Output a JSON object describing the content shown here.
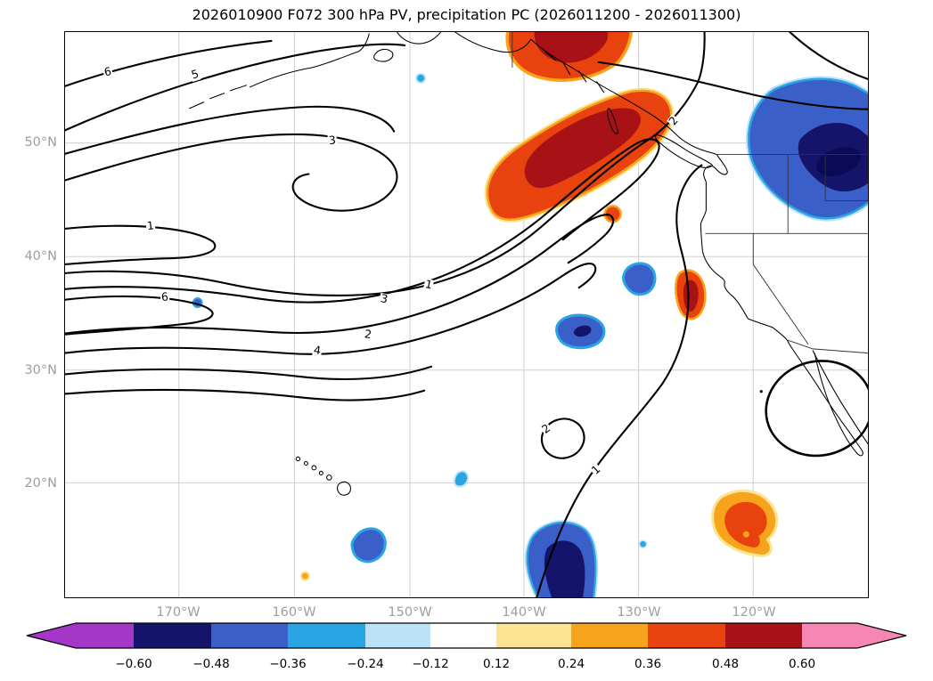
{
  "figure": {
    "title": "2026010900 F072 300 hPa PV, precipitation PC (2026011200 - 2026011300)"
  },
  "axes": {
    "x_ticks": [
      "170°W",
      "160°W",
      "150°W",
      "140°W",
      "130°W",
      "120°W"
    ],
    "y_ticks": [
      "50°N",
      "40°N",
      "30°N",
      "20°N"
    ]
  },
  "contour_labels": [
    "6",
    "5",
    "3",
    "1",
    "6",
    "4",
    "2",
    "3",
    "1",
    "2",
    "2",
    "1"
  ],
  "colorbar": {
    "tick_labels": [
      "−0.60",
      "−0.48",
      "−0.36",
      "−0.24",
      "−0.12",
      "0.12",
      "0.24",
      "0.36",
      "0.48",
      "0.60"
    ],
    "segment_colors": [
      "#14146B",
      "#3A5FC8",
      "#29A5E3",
      "#BCE2F7",
      "#FFFFFF",
      "#FBE491",
      "#F7A41C",
      "#E8430F",
      "#A81216"
    ],
    "under_color": "#A437C8",
    "over_color": "#F687B5"
  },
  "palette": {
    "neg4": "#0B0B55",
    "neg3": "#14146B",
    "neg2": "#3A5FC8",
    "neg1": "#29A5E3",
    "neg0": "#BCE2F7",
    "pos0": "#FBE491",
    "pos1": "#F7A41C",
    "pos2": "#E8430F",
    "pos3": "#A81216",
    "under": "#A437C8",
    "over": "#F687B5",
    "grid": "#cfcfcf",
    "tick": "#9e9e9e"
  },
  "chart_data": {
    "type": "contour-map",
    "title": "2026010900 F072 300 hPa PV, precipitation PC (2026011200 - 2026011300)",
    "init_time": "2026010900",
    "forecast_hour": "F072",
    "valid_window": "2026011200 - 2026011300",
    "region": {
      "lon_range": [
        "180°W",
        "110°W"
      ],
      "lat_range": [
        "10°N",
        "60°N"
      ]
    },
    "x_axis": {
      "label": "longitude",
      "ticks": [
        "170°W",
        "160°W",
        "150°W",
        "140°W",
        "130°W",
        "120°W"
      ]
    },
    "y_axis": {
      "label": "latitude",
      "ticks": [
        "50°N",
        "40°N",
        "30°N",
        "20°N"
      ]
    },
    "grid": true,
    "contours": {
      "variable": "300 hPa PV",
      "labeled_levels": [
        1,
        2,
        3,
        4,
        5,
        6
      ],
      "line_color": "#000000"
    },
    "shading": {
      "variable": "precipitation PC",
      "boundaries": [
        -0.6,
        -0.48,
        -0.36,
        -0.24,
        -0.12,
        0.12,
        0.24,
        0.36,
        0.48,
        0.6
      ],
      "extend": "both",
      "legend_position": "bottom"
    },
    "anomaly_features": [
      {
        "name": "positive anomaly - SE Alaska / panhandle coast",
        "approx_location": "57-60°N, 141-133°W",
        "value": ">= 0.48"
      },
      {
        "name": "positive anomaly - NE Pacific off BC/Washington (elongated SW-NE)",
        "approx_location": "44-53°N, 137-127°W",
        "value": ">= 0.48"
      },
      {
        "name": "small positive anomaly offshore",
        "approx_location": "43.5°N, 132°W",
        "value": ">= 0.36"
      },
      {
        "name": "positive anomaly - N California coast (elongated)",
        "approx_location": "36-39.5°N, 126-122°W",
        "value": ">= 0.36"
      },
      {
        "name": "negative anomaly - northern Rockies / Montana-Alberta",
        "approx_location": "45-54°N, 117-110°W",
        "value": "<= -0.60"
      },
      {
        "name": "negative anomaly - off California",
        "approx_location": "37-39°N, 131.5-129.5°W",
        "value": "<= -0.36"
      },
      {
        "name": "negative anomaly - central E Pacific",
        "approx_location": "32.5-35°N, 137-133°W",
        "value": "<= -0.48"
      },
      {
        "name": "negative anomaly - subtropical central Pacific",
        "approx_location": "10-16°N, 139-134°W",
        "value": "<= -0.60"
      },
      {
        "name": "negative anomaly - subtropics",
        "approx_location": "13-15.5°N, 151-149°W",
        "value": "<= -0.36"
      },
      {
        "name": "positive anomaly - subtropics west of Mexico",
        "approx_location": "13.5-17.5°N, 118-112°W",
        "value": ">= 0.36"
      },
      {
        "name": "small negative anomaly",
        "approx_location": "20°N, 145.5°W",
        "value": "<= -0.24"
      },
      {
        "name": "small positive anomaly",
        "approx_location": "11°N, 159°W",
        "value": ">= 0.24"
      }
    ]
  }
}
